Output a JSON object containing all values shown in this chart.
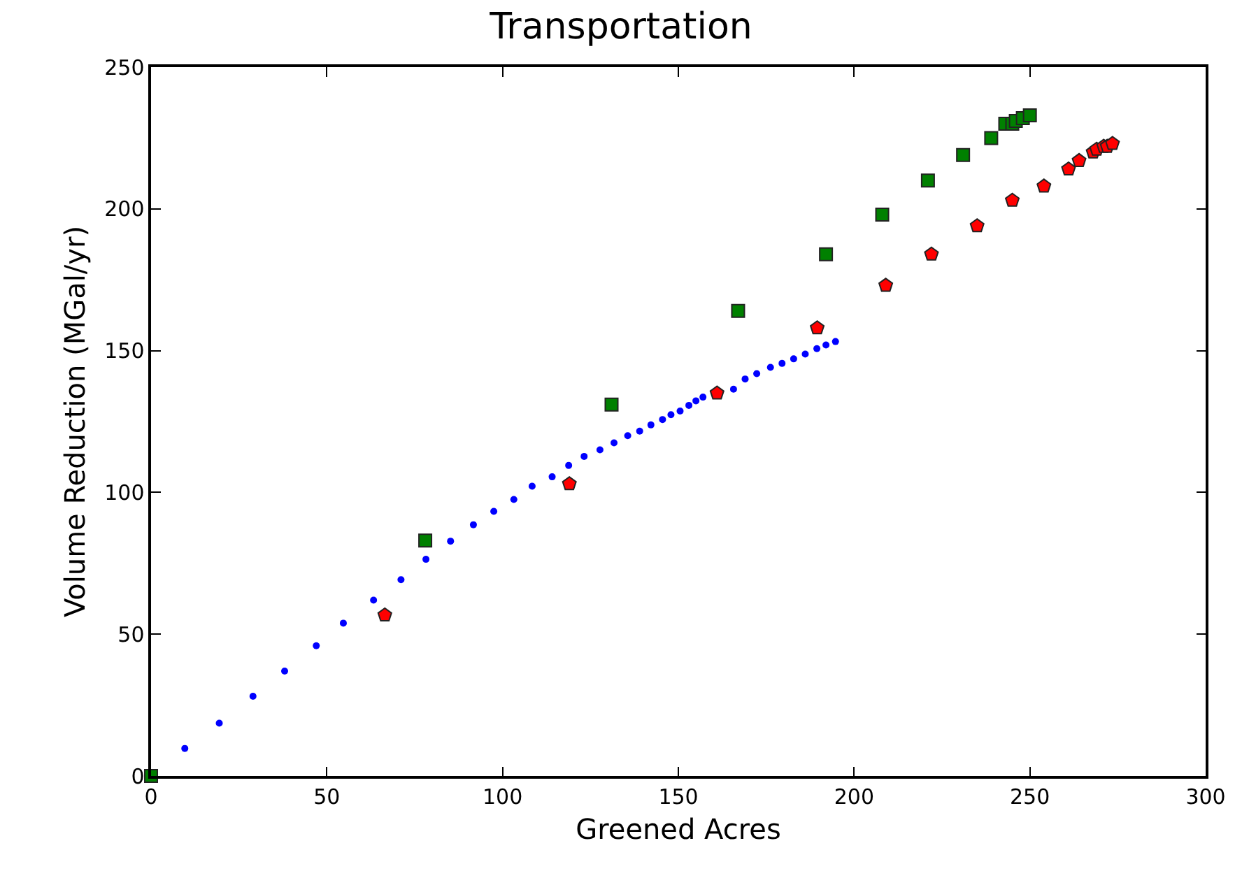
{
  "chart_data": {
    "type": "scatter",
    "title": "Transportation",
    "xlabel": "Greened Acres",
    "ylabel": "Volume Reduction (MGal/yr)",
    "xlim": [
      0,
      300
    ],
    "xticks": [
      0,
      50,
      100,
      150,
      200,
      250,
      300
    ],
    "ylim": [
      0,
      250
    ],
    "yticks": [
      0,
      50,
      100,
      150,
      200,
      250
    ],
    "series": [
      {
        "color": "#0000ff",
        "marker": "circle",
        "x": [
          9.6,
          19.4,
          29,
          38,
          47,
          54.7,
          63.3,
          71.1,
          78.2,
          85.2,
          91.7,
          97.5,
          103.2,
          108.4,
          114.1,
          118.8,
          123.2,
          127.7,
          131.7,
          135.6,
          139,
          142.2,
          145.5,
          147.9,
          150.5,
          153,
          155,
          157,
          165.7,
          169,
          172.3,
          176.2,
          179.5,
          182.8,
          186.1,
          189.4,
          192,
          194.7
        ],
        "values": [
          9.7,
          18.6,
          28.1,
          37,
          45.9,
          53.9,
          62,
          69.2,
          76.4,
          82.8,
          88.6,
          93.3,
          97.5,
          102.2,
          105.5,
          109.5,
          112.7,
          115,
          117.5,
          120,
          121.6,
          123.8,
          125.7,
          127.4,
          128.7,
          130.7,
          132.3,
          133.6,
          136.4,
          140,
          141.9,
          144.1,
          145.5,
          147.1,
          148.8,
          150.7,
          152,
          153.2
        ]
      },
      {
        "color": "#008000",
        "marker": "square",
        "x": [
          0,
          78,
          131,
          167,
          192,
          208,
          221,
          231,
          239,
          243,
          245,
          246,
          248,
          250
        ],
        "values": [
          0,
          83,
          131,
          164,
          184,
          198,
          210,
          219,
          225,
          230,
          230,
          231,
          232,
          233
        ]
      },
      {
        "color": "#ff0000",
        "x": [
          66.5,
          119,
          161,
          189.5,
          209,
          222,
          235,
          245,
          254,
          261,
          264,
          268,
          269,
          271,
          272,
          273.5
        ],
        "values": [
          56.7,
          103,
          135,
          158,
          173,
          184,
          194,
          203,
          208,
          214,
          217,
          220,
          221,
          222,
          222,
          223
        ]
      }
    ]
  }
}
